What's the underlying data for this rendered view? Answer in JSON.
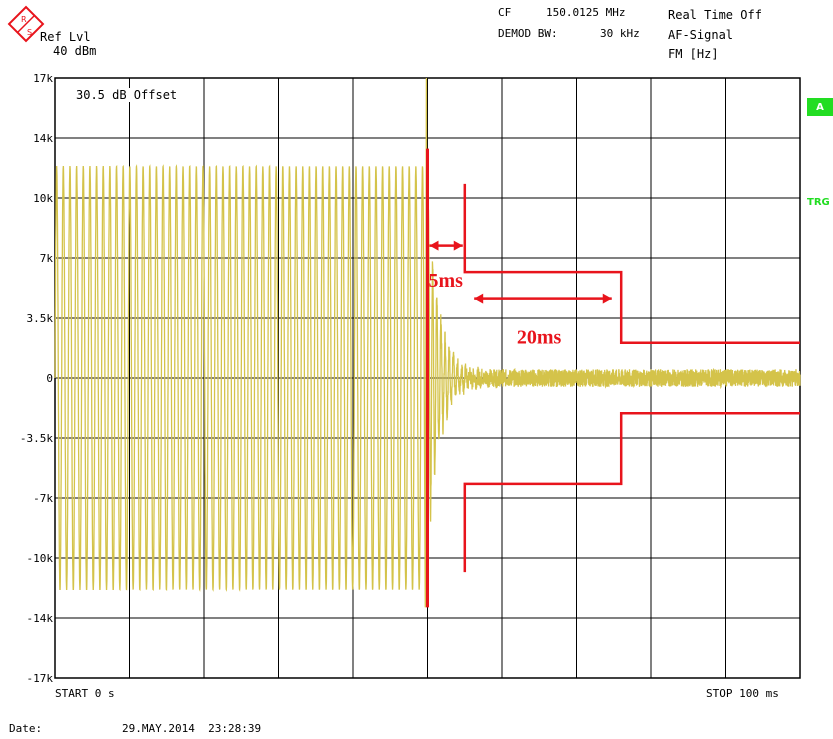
{
  "header": {
    "ref_line1": "Ref Lvl",
    "ref_line2": "40 dBm",
    "cf_label": "CF",
    "cf_value": "150.0125 MHz",
    "demod_label": "DEMOD BW:",
    "demod_value": "30 kHz",
    "mode_line1": "Real Time Off",
    "mode_line2": "AF-Signal",
    "mode_line3": "FM [Hz]",
    "offset": "30.5 dB Offset"
  },
  "side": {
    "badge": "A",
    "trigger": "TRG"
  },
  "footer": {
    "start": "START 0 s",
    "stop": "STOP 100 ms",
    "date_label": "Date:",
    "date_value": "29.MAY.2014  23:28:39"
  },
  "annotations": {
    "label_5ms": "5ms",
    "label_20ms": "20ms"
  },
  "colors": {
    "trace": "#d4c34a",
    "mask": "#e8141c",
    "grid": "#000000",
    "badge": "#22dd22"
  },
  "chart_data": {
    "type": "line",
    "xlabel": "",
    "ylabel": "",
    "x_unit": "ms",
    "xlim": [
      0,
      100
    ],
    "ylim": [
      -17000,
      17000
    ],
    "y_tick_labels": [
      "17k",
      "14k",
      "10k",
      "7k",
      "3.5k",
      "0",
      "-3.5k",
      "-7k",
      "-10k",
      "-14k",
      "-17k"
    ],
    "grid": true,
    "trace": {
      "description": "FM demodulated audio signal",
      "before_key_ms": [
        0,
        50
      ],
      "tone_amplitude_hz": 12000,
      "tone_cycles": 56,
      "key_event_ms": 50,
      "peak_at_key_hz": 17000,
      "settled_noise_hz": 500,
      "settle_time_ms": 5
    },
    "mask_upper": {
      "x": [
        55,
        55,
        55,
        76,
        76,
        100
      ],
      "y": [
        11000,
        6000,
        6000,
        6000,
        2000,
        2000
      ]
    },
    "mask_lower": {
      "x": [
        55,
        55,
        55,
        76,
        76,
        100
      ],
      "y": [
        -11000,
        -6000,
        -6000,
        -6000,
        -2000,
        -2000
      ]
    },
    "marker_line_ms": 50,
    "intervals": [
      {
        "label": "5ms",
        "from_ms": 50,
        "to_ms": 55,
        "y_hz": 7500
      },
      {
        "label": "20ms",
        "from_ms": 56,
        "to_ms": 75,
        "y_hz": 4500
      }
    ]
  }
}
